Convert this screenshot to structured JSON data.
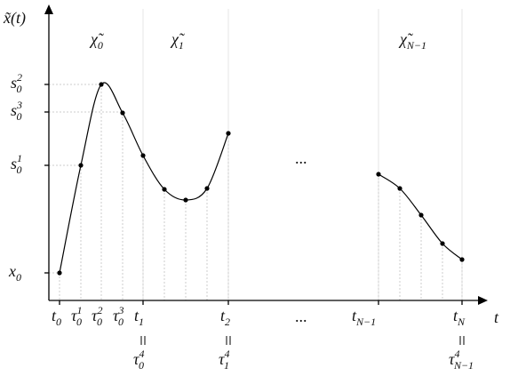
{
  "y_axis_label": "x̃(t)",
  "x_axis_label": "t",
  "segments": [
    {
      "base": "χ̃",
      "sub": "0"
    },
    {
      "base": "χ̃",
      "sub": "1"
    },
    {
      "base": "χ̃",
      "sub": "N−1"
    }
  ],
  "y_labels": [
    {
      "base": "s",
      "sub": "0",
      "sup": "2"
    },
    {
      "base": "s",
      "sub": "0",
      "sup": "3"
    },
    {
      "base": "s",
      "sub": "0",
      "sup": "1"
    },
    {
      "base": "x",
      "sub": "0"
    }
  ],
  "x_labels": [
    {
      "base": "t",
      "sub": "0"
    },
    {
      "base": "τ",
      "sub": "0",
      "sup": "1"
    },
    {
      "base": "τ",
      "sub": "0",
      "sup": "2"
    },
    {
      "base": "τ",
      "sub": "0",
      "sup": "3"
    },
    {
      "base": "t",
      "sub": "1"
    },
    {
      "base": "t",
      "sub": "2"
    },
    {
      "base": "t",
      "sub": "N−1"
    },
    {
      "base": "t",
      "sub": "N"
    }
  ],
  "equalities": [
    {
      "base": "τ",
      "sub": "0",
      "sup": "4"
    },
    {
      "base": "τ",
      "sub": "1",
      "sup": "4"
    },
    {
      "base": "τ",
      "sub": "N−1",
      "sup": "4"
    }
  ],
  "ellipses": [
    "...",
    "..."
  ]
}
